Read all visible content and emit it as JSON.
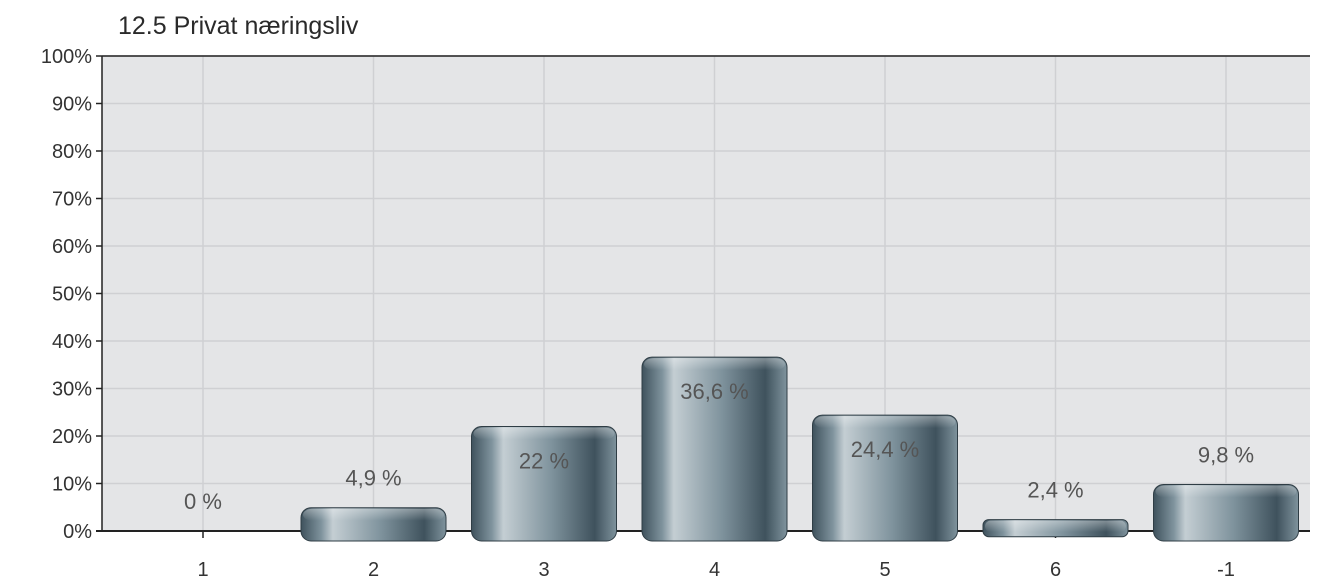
{
  "chart_data": {
    "type": "bar",
    "title": "12.5 Privat næringsliv",
    "categories": [
      "1",
      "2",
      "3",
      "4",
      "5",
      "6",
      "-1"
    ],
    "values": [
      0,
      4.9,
      22,
      36.6,
      24.4,
      2.4,
      9.8
    ],
    "data_labels": [
      "0 %",
      "4,9 %",
      "22 %",
      "36,6 %",
      "24,4 %",
      "2,4 %",
      "9,8 %"
    ],
    "y_ticks": [
      "0%",
      "10%",
      "20%",
      "30%",
      "40%",
      "50%",
      "60%",
      "70%",
      "80%",
      "90%",
      "100%"
    ],
    "ylim": [
      0,
      100
    ],
    "xlabel": "",
    "ylabel": "",
    "grid": true,
    "legend": "none",
    "colors": {
      "plot_background": "#e4e5e7",
      "grid_line": "#cfd0d3",
      "bar_dark": "#3f525d",
      "bar_mid": "#7f939d",
      "bar_light": "#c4ced3",
      "axis": "#222222"
    }
  }
}
